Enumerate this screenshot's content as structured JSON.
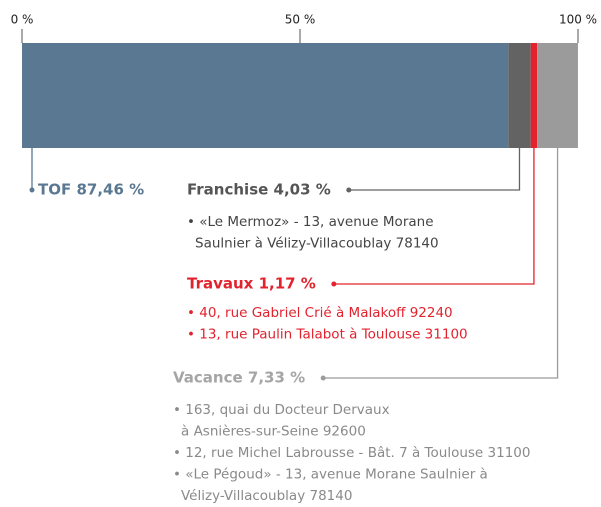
{
  "chart_data": {
    "type": "stacked-bar-100",
    "xlim": [
      0,
      100
    ],
    "xticks": [
      {
        "value": 0,
        "label": "0 %"
      },
      {
        "value": 50,
        "label": "50 %"
      },
      {
        "value": 100,
        "label": "100 %"
      }
    ],
    "series": [
      {
        "color": "#5a7891",
        "values": [
          87.46
        ],
        "value_labels": [
          "TOF 87,46 %"
        ],
        "notes": []
      },
      {
        "color": "#636363",
        "values": [
          4.03
        ],
        "value_labels": [
          "Franchise 4,03 %"
        ],
        "notes": [
          [
            "• «Le Mermoz» - 13, avenue Morane",
            "Saulnier à Vélizy-Villacoublay 78140"
          ]
        ]
      },
      {
        "color": "#e2232e",
        "values": [
          1.17
        ],
        "value_labels": [
          "Travaux 1,17 %"
        ],
        "notes": [
          [
            "• 40, rue Gabriel Crié à Malakoff 92240"
          ],
          [
            "• 13, rue Paulin Talabot à Toulouse 31100"
          ]
        ]
      },
      {
        "color": "#9b9b9b",
        "values": [
          7.33
        ],
        "value_labels": [
          "Vacance 7,33 %"
        ],
        "notes": [
          [
            "• 163, quai du Docteur Dervaux",
            "à Asnières-sur-Seine 92600"
          ],
          [
            "• 12, rue Michel Labrousse - Bât. 7 à Toulouse 31100"
          ],
          [
            "• «Le Pégoud» - 13, avenue Morane Saulnier à",
            "Vélizy-Villacoublay 78140"
          ]
        ]
      }
    ]
  }
}
